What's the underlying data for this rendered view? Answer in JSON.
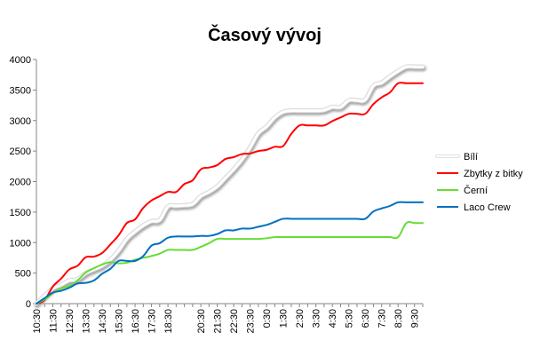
{
  "chart_data": {
    "type": "line",
    "title": "Časový vývoj",
    "xlabel": "",
    "ylabel": "",
    "ylim": [
      0,
      4000
    ],
    "y_ticks": [
      "0",
      "500",
      "1000",
      "1500",
      "2000",
      "2500",
      "3000",
      "3500",
      "4000"
    ],
    "grid": false,
    "legend_position": "right",
    "categories": [
      "10:30",
      "11:00",
      "11:30",
      "12:00",
      "12:30",
      "13:00",
      "13:30",
      "14:00",
      "14:30",
      "15:00",
      "15:30",
      "16:00",
      "16:30",
      "17:00",
      "17:30",
      "18:00",
      "18:30",
      "19:00",
      "19:30",
      "20:00",
      "20:30",
      "21:00",
      "21:30",
      "22:00",
      "22:30",
      "23:00",
      "23:30",
      "0:00",
      "0:30",
      "1:00",
      "1:30",
      "2:00",
      "2:30",
      "3:00",
      "3:30",
      "4:00",
      "4:30",
      "5:00",
      "5:30",
      "6:00",
      "6:30",
      "7:00",
      "7:30",
      "8:00",
      "8:30",
      "9:00",
      "9:30",
      "10:00"
    ],
    "x_tick_labels": [
      "10:30",
      "11:30",
      "12:30",
      "13:30",
      "14:30",
      "15:30",
      "16:30",
      "17:30",
      "18:30",
      "20:30",
      "21:30",
      "22:30",
      "23:30",
      "0:30",
      "1:30",
      "2:30",
      "3:30",
      "4:30",
      "5:30",
      "6:30",
      "7:30",
      "8:30",
      "9:30"
    ],
    "series": [
      {
        "name": "Bílí",
        "color": "#ffffff",
        "shadow": true,
        "values": [
          0,
          130,
          250,
          310,
          380,
          400,
          500,
          560,
          620,
          720,
          870,
          1060,
          1180,
          1280,
          1350,
          1370,
          1590,
          1600,
          1610,
          1630,
          1760,
          1830,
          1920,
          2060,
          2200,
          2360,
          2560,
          2790,
          2900,
          3050,
          3140,
          3160,
          3160,
          3160,
          3160,
          3170,
          3220,
          3220,
          3330,
          3330,
          3340,
          3570,
          3620,
          3720,
          3810,
          3880,
          3880,
          3880
        ]
      },
      {
        "name": "Zbytky z bitky",
        "color": "#ff0000",
        "values": [
          0,
          60,
          280,
          410,
          560,
          620,
          760,
          770,
          830,
          970,
          1120,
          1320,
          1380,
          1570,
          1690,
          1760,
          1830,
          1830,
          1960,
          2020,
          2200,
          2230,
          2270,
          2370,
          2400,
          2450,
          2460,
          2500,
          2520,
          2570,
          2580,
          2780,
          2920,
          2920,
          2920,
          2920,
          2990,
          3050,
          3110,
          3110,
          3110,
          3270,
          3380,
          3460,
          3610,
          3610,
          3610,
          3610
        ]
      },
      {
        "name": "Černí",
        "color": "#66dd33",
        "values": [
          0,
          70,
          170,
          250,
          290,
          380,
          510,
          580,
          640,
          680,
          660,
          670,
          720,
          750,
          780,
          820,
          880,
          880,
          880,
          880,
          930,
          990,
          1060,
          1060,
          1060,
          1060,
          1060,
          1060,
          1070,
          1090,
          1090,
          1090,
          1090,
          1090,
          1090,
          1090,
          1090,
          1090,
          1090,
          1090,
          1090,
          1090,
          1090,
          1090,
          1090,
          1320,
          1320,
          1320
        ]
      },
      {
        "name": "Laco Crew",
        "color": "#0070c0",
        "values": [
          0,
          90,
          180,
          210,
          260,
          330,
          340,
          380,
          490,
          570,
          700,
          700,
          700,
          780,
          950,
          990,
          1080,
          1100,
          1100,
          1100,
          1110,
          1110,
          1140,
          1200,
          1200,
          1230,
          1230,
          1260,
          1290,
          1340,
          1390,
          1390,
          1390,
          1390,
          1390,
          1390,
          1390,
          1390,
          1390,
          1390,
          1390,
          1510,
          1560,
          1600,
          1660,
          1660,
          1660,
          1660
        ]
      }
    ]
  }
}
